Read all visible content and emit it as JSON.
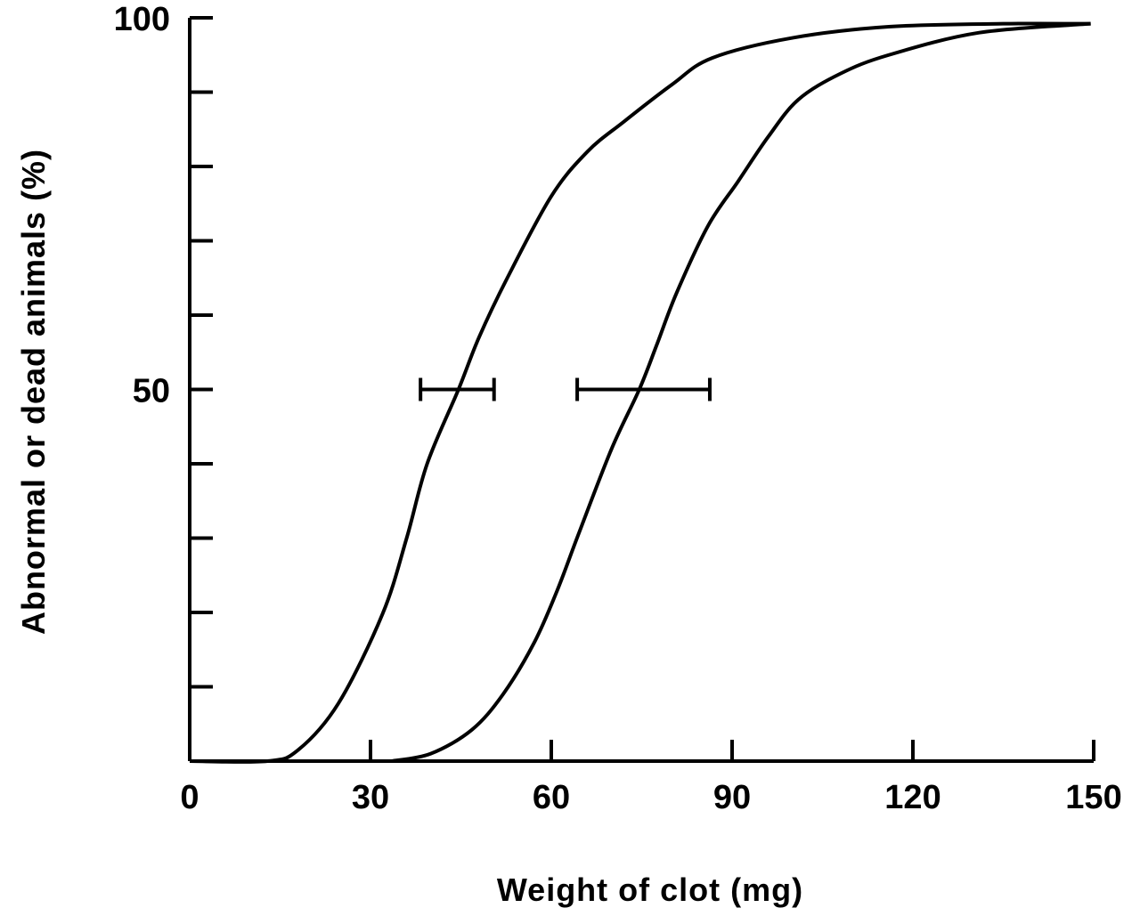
{
  "chart_data": {
    "type": "line",
    "title": "",
    "xlabel": "Weight of clot (mg)",
    "ylabel": "Abnormal or dead animals (%)",
    "xlim": [
      0,
      150
    ],
    "ylim": [
      0,
      100
    ],
    "x_ticks": [
      0,
      30,
      60,
      90,
      120,
      150
    ],
    "y_ticks_labeled": [
      50,
      100
    ],
    "y_minor_tick_step": 10,
    "grid": false,
    "line_color": "#000000",
    "series": [
      {
        "points": [
          [
            0,
            0
          ],
          [
            12.9,
            0
          ],
          [
            18,
            1.5
          ],
          [
            24.7,
            7.8
          ],
          [
            32,
            19.8
          ],
          [
            36,
            30
          ],
          [
            39.4,
            40
          ],
          [
            44.6,
            50
          ],
          [
            48,
            57
          ],
          [
            52.7,
            65
          ],
          [
            60,
            76
          ],
          [
            66,
            82
          ],
          [
            72,
            86
          ],
          [
            80,
            91
          ],
          [
            86.7,
            94.6
          ],
          [
            100,
            97.3
          ],
          [
            116,
            98.8
          ],
          [
            135,
            99.2
          ],
          [
            149.5,
            99.2
          ]
        ],
        "ed50": 44.6,
        "error_bar": [
          38.3,
          50.5
        ]
      },
      {
        "points": [
          [
            33.5,
            0
          ],
          [
            40,
            1
          ],
          [
            46.8,
            4.2
          ],
          [
            52,
            9
          ],
          [
            57.2,
            16
          ],
          [
            61,
            23
          ],
          [
            64.5,
            30.5
          ],
          [
            70,
            42
          ],
          [
            74.6,
            50
          ],
          [
            77.5,
            56
          ],
          [
            80.8,
            63
          ],
          [
            86,
            72
          ],
          [
            91,
            78
          ],
          [
            96,
            84
          ],
          [
            101,
            89
          ],
          [
            108,
            92.5
          ],
          [
            116,
            95
          ],
          [
            131,
            98
          ],
          [
            149.5,
            99.2
          ]
        ],
        "ed50": 74.6,
        "error_bar": [
          64.3,
          86.3
        ]
      }
    ]
  }
}
